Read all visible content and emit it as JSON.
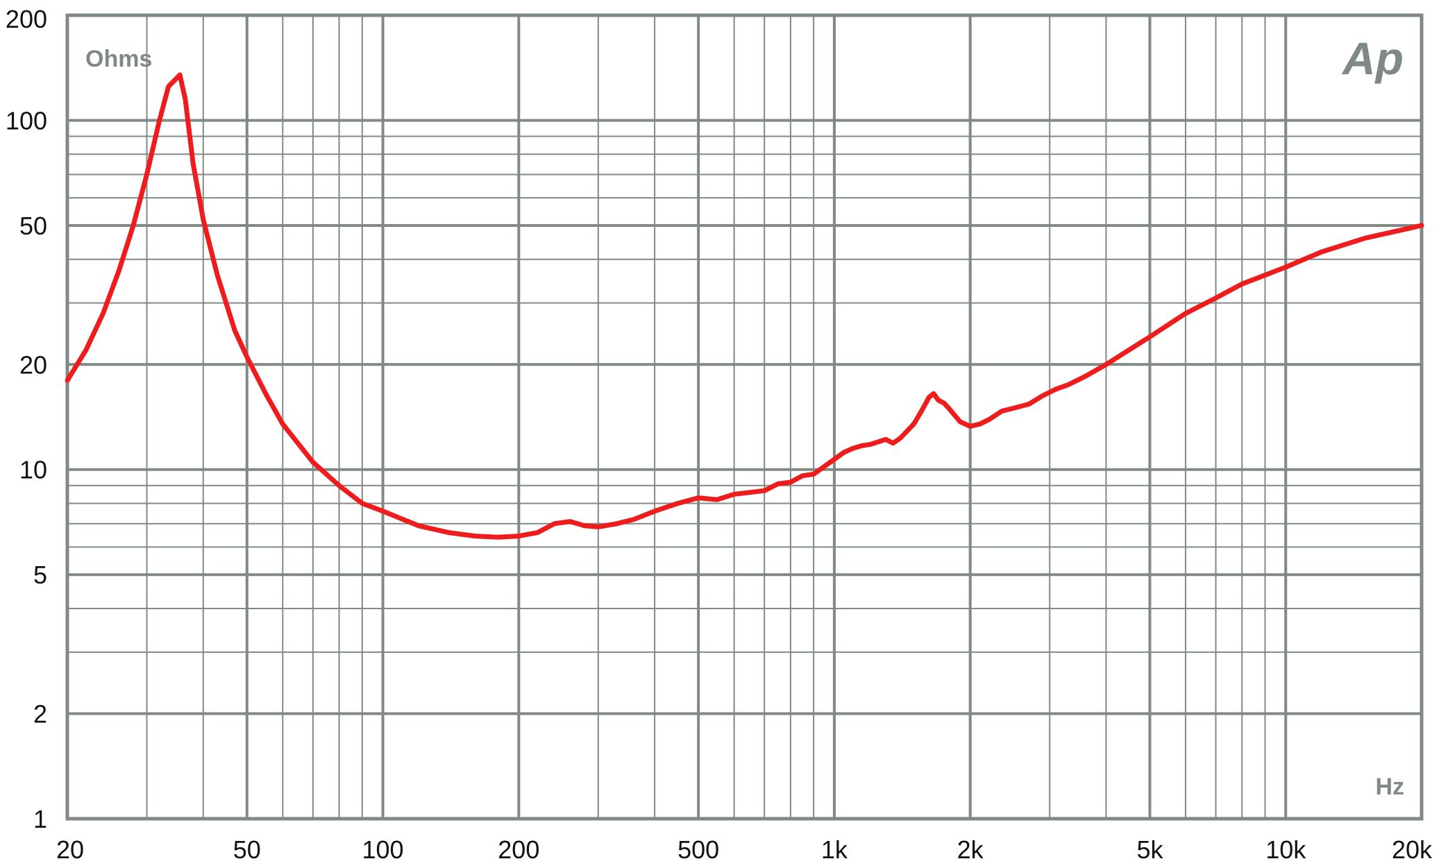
{
  "chart_data": {
    "type": "line",
    "x_scale": "log",
    "y_scale": "log",
    "xlim": [
      20,
      20000
    ],
    "ylim": [
      1,
      200
    ],
    "grid": true,
    "y_unit_label": "Ohms",
    "x_unit_label": "Hz",
    "logo_text": "Ap",
    "x_ticks": [
      {
        "value": 20,
        "label": "20"
      },
      {
        "value": 50,
        "label": "50"
      },
      {
        "value": 100,
        "label": "100"
      },
      {
        "value": 200,
        "label": "200"
      },
      {
        "value": 500,
        "label": "500"
      },
      {
        "value": 1000,
        "label": "1k"
      },
      {
        "value": 2000,
        "label": "2k"
      },
      {
        "value": 5000,
        "label": "5k"
      },
      {
        "value": 10000,
        "label": "10k"
      },
      {
        "value": 20000,
        "label": "20k"
      }
    ],
    "y_ticks": [
      {
        "value": 1,
        "label": "1"
      },
      {
        "value": 2,
        "label": "2"
      },
      {
        "value": 5,
        "label": "5"
      },
      {
        "value": 10,
        "label": "10"
      },
      {
        "value": 20,
        "label": "20"
      },
      {
        "value": 50,
        "label": "50"
      },
      {
        "value": 100,
        "label": "100"
      },
      {
        "value": 200,
        "label": "200"
      }
    ],
    "series": [
      {
        "color": "#ee1c1c",
        "x": [
          20,
          22,
          24,
          26,
          28,
          30,
          32,
          33.5,
          34.5,
          35.5,
          36.5,
          38,
          40,
          43,
          47,
          50,
          55,
          60,
          70,
          80,
          90,
          100,
          120,
          140,
          160,
          180,
          200,
          220,
          240,
          260,
          280,
          300,
          330,
          360,
          400,
          450,
          500,
          550,
          600,
          650,
          700,
          750,
          800,
          850,
          900,
          950,
          1000,
          1050,
          1100,
          1150,
          1200,
          1250,
          1300,
          1350,
          1400,
          1500,
          1550,
          1600,
          1620,
          1660,
          1700,
          1750,
          1800,
          1900,
          2000,
          2100,
          2200,
          2350,
          2500,
          2700,
          2900,
          3100,
          3300,
          3600,
          4000,
          5000,
          6000,
          7000,
          8000,
          10000,
          12000,
          15000,
          20000
        ],
        "y": [
          18,
          22,
          28,
          37,
          50,
          70,
          100,
          125,
          130,
          135,
          115,
          75,
          52,
          36,
          25,
          21,
          16.5,
          13.5,
          10.5,
          9,
          8,
          7.6,
          6.9,
          6.6,
          6.45,
          6.4,
          6.45,
          6.6,
          7.0,
          7.1,
          6.9,
          6.85,
          7.0,
          7.2,
          7.6,
          8.0,
          8.3,
          8.2,
          8.5,
          8.6,
          8.7,
          9.1,
          9.2,
          9.6,
          9.7,
          10.2,
          10.7,
          11.2,
          11.5,
          11.7,
          11.8,
          12.0,
          12.2,
          11.9,
          12.3,
          13.5,
          14.5,
          15.6,
          16.1,
          16.5,
          15.8,
          15.5,
          14.9,
          13.7,
          13.3,
          13.5,
          13.9,
          14.7,
          15.0,
          15.4,
          16.3,
          17.0,
          17.5,
          18.5,
          20,
          24,
          28,
          31,
          34,
          38,
          42,
          46,
          50
        ]
      }
    ]
  }
}
